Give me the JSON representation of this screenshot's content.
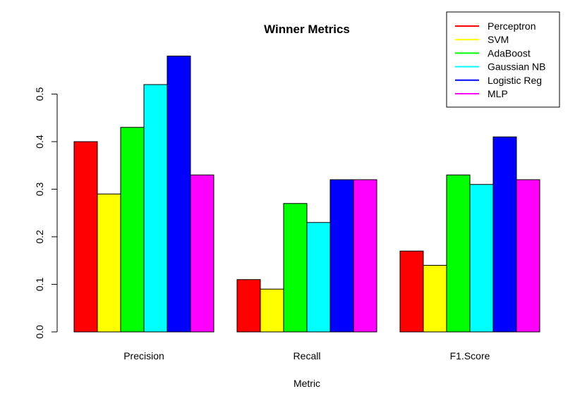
{
  "chart_data": {
    "type": "bar",
    "title": "Winner Metrics",
    "xlabel": "Metric",
    "ylabel": "",
    "ylim": [
      0,
      0.6
    ],
    "yticks": [
      "0.0",
      "0.1",
      "0.2",
      "0.3",
      "0.4",
      "0.5"
    ],
    "categories": [
      "Precision",
      "Recall",
      "F1.Score"
    ],
    "series": [
      {
        "name": "Perceptron",
        "color": "#ff0000",
        "values": [
          0.4,
          0.11,
          0.17
        ]
      },
      {
        "name": "SVM",
        "color": "#ffff00",
        "values": [
          0.29,
          0.09,
          0.14
        ]
      },
      {
        "name": "AdaBoost",
        "color": "#00ff00",
        "values": [
          0.43,
          0.27,
          0.33
        ]
      },
      {
        "name": "Gaussian NB",
        "color": "#00ffff",
        "values": [
          0.52,
          0.23,
          0.31
        ]
      },
      {
        "name": "Logistic Reg",
        "color": "#0000ff",
        "values": [
          0.58,
          0.32,
          0.41
        ]
      },
      {
        "name": "MLP",
        "color": "#ff00ff",
        "values": [
          0.33,
          0.32,
          0.32
        ]
      }
    ],
    "grid": false,
    "legend_position": "top-right"
  }
}
